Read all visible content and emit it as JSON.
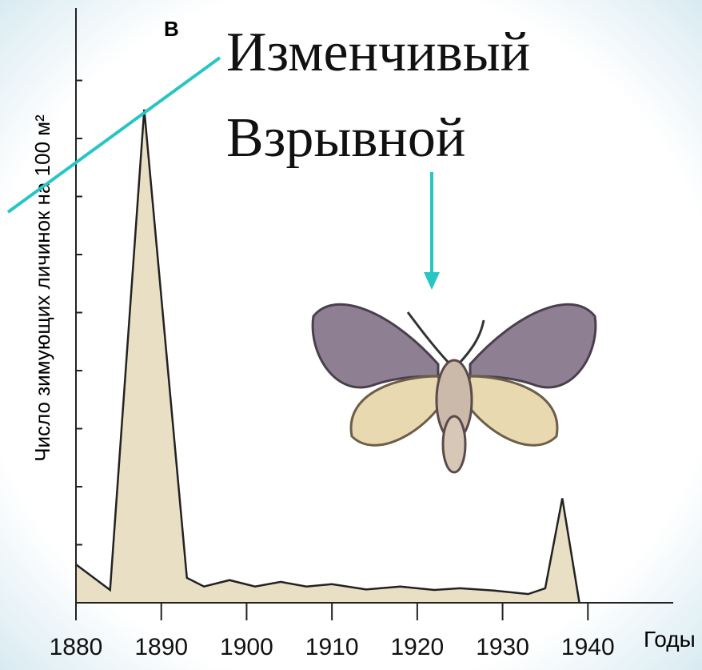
{
  "chart_data": {
    "type": "area",
    "ylabel": "Число зимующих личинок на 100 м²",
    "xlabel": "Годы",
    "annotations": [
      "В",
      "Изменчивый",
      "Взрывной"
    ],
    "x": [
      1880,
      1884,
      1888,
      1893,
      1895,
      1898,
      1901,
      1904,
      1907,
      1910,
      1914,
      1918,
      1922,
      1925,
      1929,
      1933,
      1935,
      1937,
      1939
    ],
    "values": [
      0.66,
      0.22,
      8.5,
      0.43,
      0.28,
      0.39,
      0.28,
      0.36,
      0.28,
      0.32,
      0.23,
      0.28,
      0.22,
      0.25,
      0.21,
      0.15,
      0.25,
      1.8,
      0
    ],
    "color": "#e9dfc4",
    "line_color": "#222222",
    "xlim": [
      1880,
      1950
    ],
    "ylim": [
      0,
      10
    ],
    "xticks": [
      1880,
      1890,
      1900,
      1910,
      1920,
      1930,
      1940
    ],
    "yticks": [
      1,
      2,
      3,
      4,
      5,
      6,
      7,
      8,
      9
    ]
  }
}
